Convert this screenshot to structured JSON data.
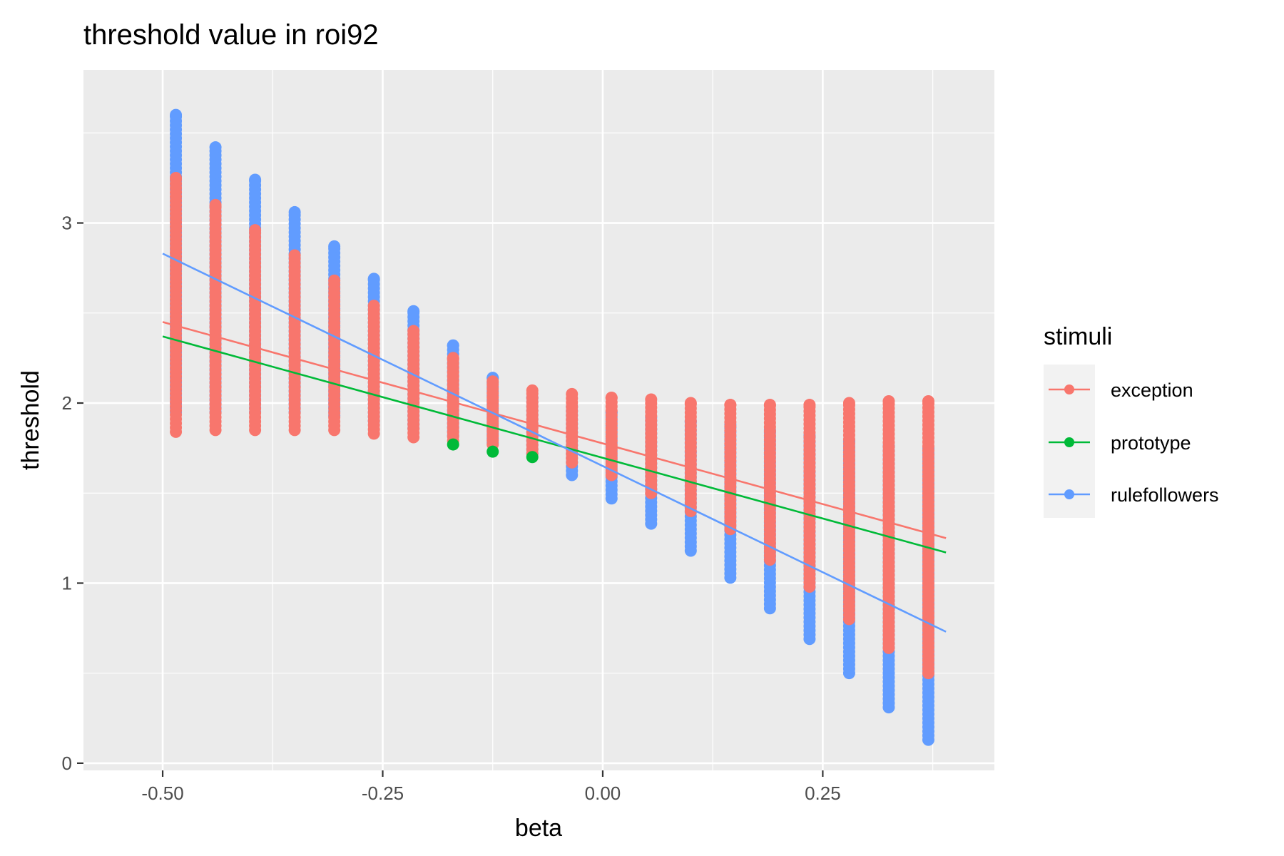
{
  "chart_data": {
    "type": "scatter",
    "title": "threshold value in roi92",
    "xlabel": "beta",
    "ylabel": "threshold",
    "xlim": [
      -0.59,
      0.445
    ],
    "ylim": [
      -0.04,
      3.85
    ],
    "x_ticks": [
      -0.5,
      -0.25,
      0,
      0.25
    ],
    "x_tick_labels": [
      "-0.50",
      "-0.25",
      "0.00",
      "0.25"
    ],
    "y_ticks": [
      0,
      1,
      2,
      3
    ],
    "y_tick_labels": [
      "0",
      "1",
      "2",
      "3"
    ],
    "grid": true,
    "legend": {
      "title": "stimuli",
      "position": "right"
    },
    "x_positions": [
      -0.485,
      -0.44,
      -0.395,
      -0.35,
      -0.305,
      -0.26,
      -0.215,
      -0.17,
      -0.125,
      -0.08,
      -0.035,
      0.01,
      0.055,
      0.1,
      0.145,
      0.19,
      0.235,
      0.28,
      0.325,
      0.37
    ],
    "series": [
      {
        "name": "exception",
        "color": "#F8766D",
        "range_min": [
          1.84,
          1.85,
          1.85,
          1.85,
          1.85,
          1.83,
          1.81,
          1.79,
          1.77,
          1.72,
          1.67,
          1.6,
          1.5,
          1.4,
          1.3,
          1.13,
          0.98,
          0.8,
          0.64,
          0.5
        ],
        "range_max": [
          3.25,
          3.1,
          2.96,
          2.82,
          2.68,
          2.54,
          2.4,
          2.25,
          2.12,
          2.07,
          2.05,
          2.03,
          2.02,
          2.0,
          1.99,
          1.99,
          1.99,
          2.0,
          2.01,
          2.01
        ],
        "fit_line": {
          "x": [
            -0.5,
            0.39
          ],
          "y": [
            2.45,
            1.25
          ]
        }
      },
      {
        "name": "prototype",
        "color": "#00BA38",
        "points": [
          {
            "x": -0.17,
            "y": 1.77
          },
          {
            "x": -0.125,
            "y": 1.73
          },
          {
            "x": -0.08,
            "y": 1.7
          }
        ],
        "fit_line": {
          "x": [
            -0.5,
            0.39
          ],
          "y": [
            2.37,
            1.17
          ]
        }
      },
      {
        "name": "rulefollowers",
        "color": "#619CFF",
        "range_min": [
          1.95,
          1.95,
          1.95,
          1.95,
          1.93,
          1.9,
          1.86,
          1.82,
          1.78,
          1.72,
          1.6,
          1.47,
          1.33,
          1.18,
          1.03,
          0.86,
          0.69,
          0.5,
          0.31,
          0.13
        ],
        "range_max": [
          3.6,
          3.42,
          3.24,
          3.06,
          2.87,
          2.69,
          2.51,
          2.32,
          2.14,
          2.03,
          1.98,
          1.95,
          1.92,
          1.9,
          1.88,
          1.85,
          1.82,
          1.79,
          1.76,
          1.75
        ],
        "fit_line": {
          "x": [
            -0.5,
            0.39
          ],
          "y": [
            2.83,
            0.73
          ]
        }
      }
    ]
  }
}
